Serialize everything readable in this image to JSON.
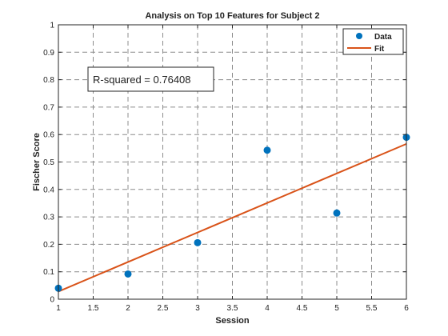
{
  "chart_data": {
    "type": "scatter",
    "title": "Analysis on Top 10 Features for Subject 2",
    "xlabel": "Session",
    "ylabel": "Fischer Score",
    "xlim": [
      1,
      6
    ],
    "ylim": [
      0,
      1
    ],
    "xticks": [
      1,
      1.5,
      2,
      2.5,
      3,
      3.5,
      4,
      4.5,
      5,
      5.5,
      6
    ],
    "yticks": [
      0,
      0.1,
      0.2,
      0.3,
      0.4,
      0.5,
      0.6,
      0.7,
      0.8,
      0.9,
      1
    ],
    "grid": true,
    "legend_position": "top-right",
    "series": [
      {
        "name": "Data",
        "kind": "scatter",
        "color": "#0072BD",
        "x": [
          1,
          2,
          3,
          4,
          5,
          6
        ],
        "y": [
          0.04,
          0.092,
          0.206,
          0.543,
          0.314,
          0.59
        ]
      },
      {
        "name": "Fit",
        "kind": "line",
        "color": "#D95319",
        "x": [
          1,
          6
        ],
        "y": [
          0.028,
          0.566
        ]
      }
    ],
    "annotation": "R-squared = 0.76408"
  }
}
